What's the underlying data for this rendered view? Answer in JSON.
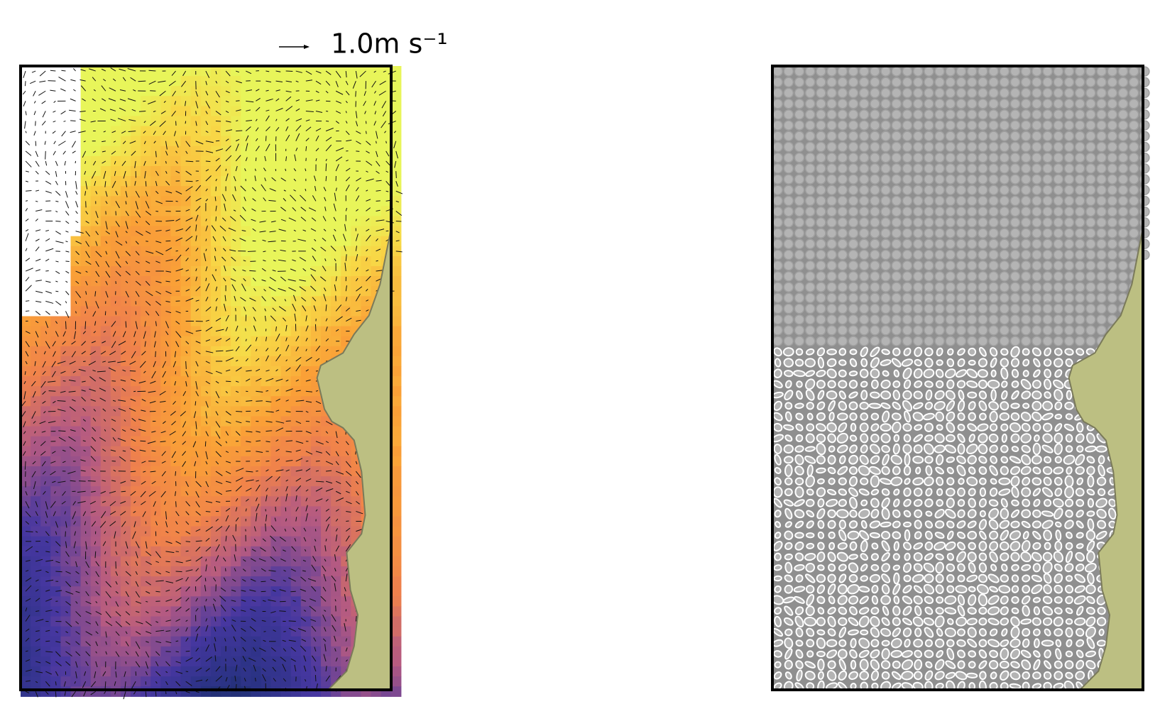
{
  "figure": {
    "quiver_key": {
      "label": "1.0m s⁻¹"
    }
  }
}
